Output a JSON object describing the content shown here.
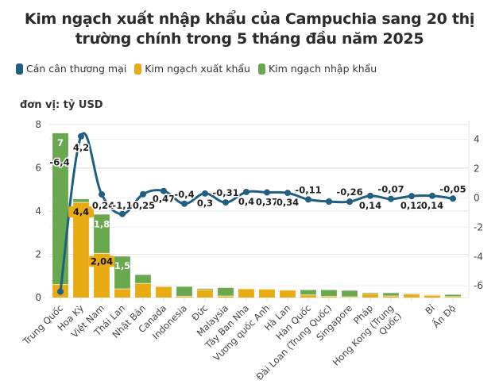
{
  "chart_data": {
    "type": "bar",
    "title": "Kim ngạch xuất nhập khẩu của Campuchia sang 20 thị trường chính trong 5 tháng đầu năm 2025",
    "title_lines": [
      "Kim ngạch xuất nhập khẩu của Campuchia sang 20 thị",
      "trường chính trong 5 tháng đầu năm 2025"
    ],
    "unit_label": "đơn vị: tỷ USD",
    "legend_position": "top-left",
    "grid": true,
    "categories": [
      "Trung Quốc",
      "Hoa Kỳ",
      "Việt Nam",
      "Thái Lan",
      "Nhật Bản",
      "Canada",
      "Indonesia",
      "Đức",
      "Malaysia",
      "Tây Ban Nha",
      "Vương quốc Anh",
      "Hà Lan",
      "Hàn Quốc",
      "Đài Loan (Trung Quốc)",
      "Singapore",
      "Pháp",
      "Hong Kong (Trung Quốc)",
      "",
      "Bỉ",
      "Ấn Độ"
    ],
    "category_label_lines": [
      [
        "Trung Quốc"
      ],
      [
        "Hoa Kỳ"
      ],
      [
        "Việt Nam"
      ],
      [
        "Thái Lan"
      ],
      [
        "Nhật Bản"
      ],
      [
        "Canada"
      ],
      [
        "Indonesia"
      ],
      [
        "Đức"
      ],
      [
        "Malaysia"
      ],
      [
        "Tây Ban Nha"
      ],
      [
        "Vương quốc Anh"
      ],
      [
        "Hà Lan"
      ],
      [
        "Hàn Quốc"
      ],
      [
        "Đài Loan (Trung Quốc)"
      ],
      [
        "Singapore"
      ],
      [
        "Pháp"
      ],
      [
        "Hong Kong (Trung",
        "Quốc)"
      ],
      [],
      [
        "Bỉ"
      ],
      [
        "Ấn Độ"
      ]
    ],
    "series": [
      {
        "name": "Kim ngạch xuất khẩu",
        "type": "bar",
        "stack": "trade",
        "axis": "left",
        "color": "#e8ab13",
        "values": [
          0.6,
          4.4,
          2.04,
          0.4,
          0.65,
          0.5,
          0.05,
          0.36,
          0.07,
          0.4,
          0.38,
          0.34,
          0.12,
          0.05,
          0.03,
          0.18,
          0.07,
          0.15,
          0.1,
          0.04
        ],
        "labels": {
          "1": "4,4",
          "2": "2,04"
        }
      },
      {
        "name": "Kim ngạch nhập khẩu",
        "type": "bar",
        "stack": "trade",
        "axis": "left",
        "color": "#6aa84f",
        "values": [
          7.0,
          0.15,
          1.8,
          1.5,
          0.4,
          0.02,
          0.45,
          0.05,
          0.38,
          0.01,
          0.01,
          0.01,
          0.23,
          0.3,
          0.29,
          0.04,
          0.14,
          0.03,
          0.02,
          0.09
        ],
        "labels": {
          "0": "7",
          "2": "1,8",
          "3": "1,5"
        }
      },
      {
        "name": "Cán cân thương mại",
        "type": "line",
        "axis": "right",
        "color": "#1f5f82",
        "values": [
          -6.4,
          4.2,
          0.24,
          -1.1,
          0.25,
          0.47,
          -0.4,
          0.3,
          -0.31,
          0.4,
          0.37,
          0.34,
          -0.11,
          -0.25,
          -0.26,
          0.14,
          -0.07,
          0.12,
          0.14,
          -0.05
        ],
        "labels": [
          "-6,4",
          "4,2",
          "0,24",
          "-1,1",
          "0,25",
          "0,47",
          "-0,4",
          "0,3",
          "-0,31",
          "0,4",
          "0,37",
          "0,34",
          "-0,11",
          "",
          "-0,26",
          "0,14",
          "-0,07",
          "0,12",
          "0,14",
          "-0,05"
        ]
      }
    ],
    "legend_order": [
      "Cán cân thương mại",
      "Kim ngạch xuất khẩu",
      "Kim ngạch nhập khẩu"
    ],
    "y_left": {
      "range": [
        0,
        8
      ],
      "ticks": [
        0,
        2,
        4,
        6,
        8
      ]
    },
    "y_right": {
      "range": [
        -6.8,
        5
      ],
      "ticks": [
        -6,
        -4,
        -2,
        0,
        2,
        4
      ]
    }
  }
}
